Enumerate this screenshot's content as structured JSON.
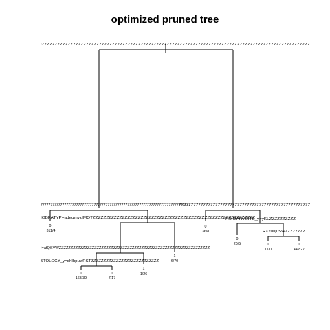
{
  "title": "optimized pruned tree",
  "split_labels": {
    "root": "!ZZZZZZZZZZZZZZZZZZZZZZZZZZZZZZZZZZZZZZZZZZZZZZZZZZZZZZZZZZZZZZZZZZZZZZZZZZZZZZZZZZZZZZZZZZZZZZZZZZZZZZZ",
    "left_wide": "ZZZZZZZZZZZZZZZZZZZZZZZZZZZZZZZZZZZZZZZZZZZZZZZZZZZZZZZZZZZZZZZZZZZZZZZZZZZZ",
    "right_wide": "ZZZZZZZZZZZZZZZZZZZZZZZZZZZZZZZZZZZZZZZZZZZZZZZZZZZZZZ",
    "mid": "IOBPATYP=adegmyzIMQTZZZZZZZZZZZZZZZZZZZZZZZZZZZZZZZZZZZZZZZZZZZZZZZZZZZZZZZZZZZZZ",
    "sub": "I=afQSVWZZZZZZZZZZZZZZZZZZZZZZZZZZZZZZZZZZZZZZZZZZZZZZZZZZZZZZZZZZZZZZZZ",
    "histology": "STOLOGY_y=dhIhpuwRSTZZZZZZZZZZZZZZZZZZZZZZZZZZZ",
    "right_sub": "PRIMARYSITE_y=yKLZZZZZZZZZZ",
    "rx": "RX20=jLSWZZZZZZZZ"
  },
  "leaves": [
    {
      "class": "0",
      "counts": "311/4"
    },
    {
      "class": "0",
      "counts": "168/39"
    },
    {
      "class": "1",
      "counts": "7/17"
    },
    {
      "class": "1",
      "counts": "1/26"
    },
    {
      "class": "1",
      "counts": "6/70"
    },
    {
      "class": "0",
      "counts": "36/8"
    },
    {
      "class": "0",
      "counts": "20/5"
    },
    {
      "class": "0",
      "counts": "11/0"
    },
    {
      "class": "1",
      "counts": "44/827"
    }
  ]
}
